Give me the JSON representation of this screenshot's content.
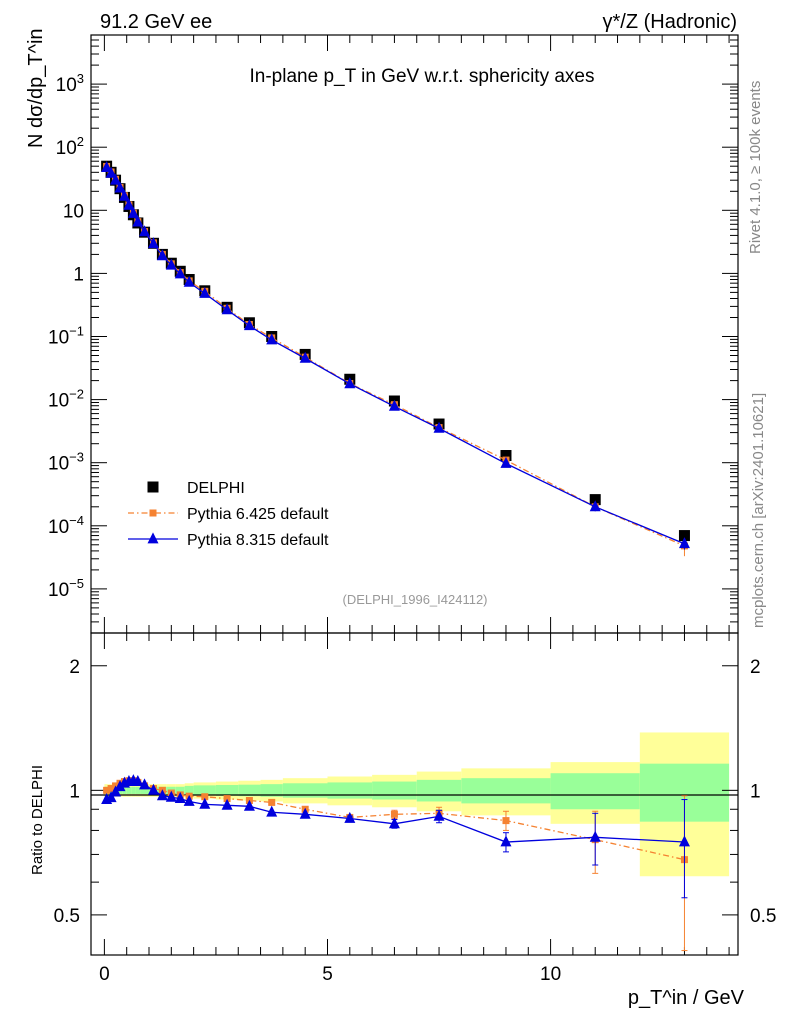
{
  "header": {
    "left": "91.2 GeV ee",
    "right": "γ*/Z (Hadronic)"
  },
  "side_text": {
    "rivet": "Rivet 4.1.0, ≥ 100k events",
    "mcplots": "mcplots.cern.ch [arXiv:2401.10621]"
  },
  "chart_data": [
    {
      "type": "scatter",
      "panel": "main",
      "title": "In-plane p_T in GeV w.r.t. sphericity axes",
      "ylabel": "N dσ/dp_T^in",
      "yscale": "log",
      "xlim": [
        -0.3,
        14.2
      ],
      "ylim": [
        2e-06,
        6000
      ],
      "ytick_labels": [
        "10^-5",
        "10^-4",
        "10^-3",
        "10^-2",
        "10^-1",
        "1",
        "10",
        "10^2",
        "10^3"
      ],
      "watermark": "(DELPHI_1996_I424112)",
      "legend": {
        "position": "bottom-left",
        "entries": [
          "DELPHI",
          "Pythia 6.425 default",
          "Pythia 8.315 default"
        ]
      },
      "series": [
        {
          "name": "DELPHI",
          "color": "#000000",
          "marker": "square",
          "x": [
            0.05,
            0.15,
            0.25,
            0.35,
            0.45,
            0.55,
            0.65,
            0.75,
            0.9,
            1.1,
            1.3,
            1.5,
            1.7,
            1.9,
            2.25,
            2.75,
            3.25,
            3.75,
            4.5,
            5.5,
            6.5,
            7.5,
            9.0,
            11.0,
            13.0
          ],
          "y": [
            50,
            40,
            30,
            22,
            16,
            11.5,
            8.5,
            6.3,
            4.5,
            3.0,
            2.0,
            1.45,
            1.08,
            0.8,
            0.53,
            0.29,
            0.165,
            0.1,
            0.052,
            0.021,
            0.0095,
            0.0041,
            0.0013,
            0.00026,
            7e-05
          ]
        },
        {
          "name": "Pythia 6.425 default",
          "color": "#f58231",
          "marker": "square-small",
          "line": "dash-dot",
          "x": [
            0.05,
            0.15,
            0.25,
            0.35,
            0.45,
            0.55,
            0.65,
            0.75,
            0.9,
            1.1,
            1.3,
            1.5,
            1.7,
            1.9,
            2.25,
            2.75,
            3.25,
            3.75,
            4.5,
            5.5,
            6.5,
            7.5,
            9.0,
            11.0,
            13.0
          ],
          "y": [
            49.5,
            40.5,
            31,
            23,
            17,
            12.2,
            9.0,
            6.6,
            4.6,
            3.05,
            2.0,
            1.42,
            1.03,
            0.76,
            0.52,
            0.28,
            0.155,
            0.095,
            0.047,
            0.018,
            0.0083,
            0.0036,
            0.0011,
            0.0002,
            4.8e-05
          ],
          "yerr": [
            0,
            0,
            0,
            0,
            0,
            0,
            0,
            0,
            0,
            0,
            0,
            0,
            0,
            0,
            0,
            0,
            0,
            0,
            0,
            0.0004,
            0.0003,
            0.00015,
            6e-05,
            3e-05,
            1.5e-05
          ]
        },
        {
          "name": "Pythia 8.315 default",
          "color": "#0000dd",
          "marker": "triangle",
          "line": "solid",
          "x": [
            0.05,
            0.15,
            0.25,
            0.35,
            0.45,
            0.55,
            0.65,
            0.75,
            0.9,
            1.1,
            1.3,
            1.5,
            1.7,
            1.9,
            2.25,
            2.75,
            3.25,
            3.75,
            4.5,
            5.5,
            6.5,
            7.5,
            9.0,
            11.0,
            13.0
          ],
          "y": [
            47.5,
            38.5,
            30,
            22.5,
            16.6,
            12.0,
            8.9,
            6.5,
            4.55,
            2.95,
            1.9,
            1.35,
            0.98,
            0.72,
            0.48,
            0.265,
            0.148,
            0.088,
            0.045,
            0.0178,
            0.0078,
            0.0035,
            0.00097,
            0.0002,
            5.2e-05
          ],
          "yerr": [
            0,
            0,
            0,
            0,
            0,
            0,
            0,
            0,
            0,
            0,
            0,
            0,
            0,
            0,
            0,
            0,
            0,
            0,
            0,
            0.0004,
            0.0003,
            0.00015,
            6e-05,
            3e-05,
            1e-05
          ]
        }
      ]
    },
    {
      "type": "scatter",
      "panel": "ratio",
      "ylabel": "Ratio to DELPHI",
      "xlabel": "p_T^in / GeV",
      "yscale": "log",
      "xlim": [
        -0.3,
        14.2
      ],
      "ylim": [
        0.4,
        2.4
      ],
      "xtick_labels": [
        "0",
        "5",
        "10"
      ],
      "ytick_labels": [
        "0.5",
        "1",
        "2"
      ],
      "bands": {
        "x_edges": [
          0,
          0.1,
          0.2,
          0.3,
          0.4,
          0.5,
          0.6,
          0.7,
          0.8,
          1.0,
          1.2,
          1.4,
          1.6,
          1.8,
          2.0,
          2.5,
          3.0,
          3.5,
          4.0,
          5.0,
          6.0,
          7.0,
          8.0,
          10.0,
          12.0,
          14.0
        ],
        "inner_half_width": [
          0.02,
          0.02,
          0.02,
          0.02,
          0.02,
          0.02,
          0.02,
          0.02,
          0.02,
          0.02,
          0.02,
          0.02,
          0.02,
          0.025,
          0.028,
          0.03,
          0.032,
          0.035,
          0.04,
          0.045,
          0.05,
          0.06,
          0.07,
          0.1,
          0.16
        ],
        "outer_half_width": [
          0.035,
          0.035,
          0.035,
          0.035,
          0.035,
          0.035,
          0.035,
          0.035,
          0.035,
          0.035,
          0.035,
          0.035,
          0.035,
          0.04,
          0.045,
          0.05,
          0.055,
          0.06,
          0.07,
          0.08,
          0.09,
          0.11,
          0.13,
          0.17,
          0.38
        ],
        "inner_color": "#99ff99",
        "outer_color": "#ffff99"
      },
      "series": [
        {
          "name": "Pythia 6.425 default",
          "color": "#f58231",
          "x": [
            0.05,
            0.15,
            0.25,
            0.35,
            0.45,
            0.55,
            0.65,
            0.75,
            0.9,
            1.1,
            1.3,
            1.5,
            1.7,
            1.9,
            2.25,
            2.75,
            3.25,
            3.75,
            4.5,
            5.5,
            6.5,
            7.5,
            9.0,
            11.0,
            13.0
          ],
          "y": [
            1.0,
            1.01,
            1.025,
            1.04,
            1.05,
            1.055,
            1.055,
            1.045,
            1.025,
            1.01,
            1.0,
            0.985,
            0.975,
            0.968,
            0.965,
            0.955,
            0.945,
            0.935,
            0.9,
            0.86,
            0.875,
            0.88,
            0.845,
            0.76,
            0.68
          ],
          "yerr": [
            0,
            0,
            0,
            0,
            0,
            0,
            0,
            0,
            0,
            0,
            0,
            0,
            0,
            0,
            0,
            0,
            0,
            0,
            0,
            0.012,
            0.02,
            0.03,
            0.045,
            0.13,
            0.29
          ]
        },
        {
          "name": "Pythia 8.315 default",
          "color": "#0000dd",
          "x": [
            0.05,
            0.15,
            0.25,
            0.35,
            0.45,
            0.55,
            0.65,
            0.75,
            0.9,
            1.1,
            1.3,
            1.5,
            1.7,
            1.9,
            2.25,
            2.75,
            3.25,
            3.75,
            4.5,
            5.5,
            6.5,
            7.5,
            9.0,
            11.0,
            13.0
          ],
          "y": [
            0.95,
            0.96,
            0.99,
            1.02,
            1.04,
            1.05,
            1.055,
            1.05,
            1.03,
            1.0,
            0.97,
            0.962,
            0.955,
            0.94,
            0.925,
            0.92,
            0.915,
            0.885,
            0.875,
            0.855,
            0.83,
            0.865,
            0.75,
            0.77,
            0.75
          ],
          "yerr": [
            0,
            0,
            0,
            0,
            0,
            0,
            0,
            0,
            0,
            0,
            0,
            0,
            0,
            0,
            0,
            0,
            0,
            0,
            0,
            0.012,
            0.02,
            0.03,
            0.04,
            0.11,
            0.2
          ]
        }
      ]
    }
  ]
}
